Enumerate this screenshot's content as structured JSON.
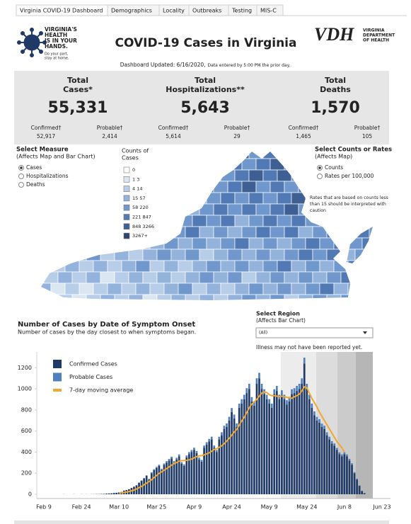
{
  "tabs": [
    "Virginia COVID-19 Dashboard",
    "Demographics",
    "Locality",
    "Outbreaks",
    "Testing",
    "MIS-C"
  ],
  "header": {
    "logo_lines": [
      "VIRGINIA'S",
      "HEALTH",
      "IS IN YOUR",
      "HANDS."
    ],
    "logo_tagline": [
      "Do your part,",
      "stay at home."
    ],
    "title": "COVID-19 Cases in Virginia",
    "vdh_mark": "VDH",
    "vdh_name": [
      "VIRGINIA",
      "DEPARTMENT",
      "OF HEALTH"
    ],
    "updated": "Dashboard Updated: 6/16/2020,",
    "updated_note": "Data entered by 5:00 PM the prior day."
  },
  "kpis": [
    {
      "title": [
        "Total",
        "Cases*"
      ],
      "value": "55,331",
      "parts": [
        {
          "label": "Confirmed†",
          "value": "52,917"
        },
        {
          "label": "Probable†",
          "value": "2,414"
        }
      ]
    },
    {
      "title": [
        "Total",
        "Hospitalizations**"
      ],
      "value": "5,643",
      "parts": [
        {
          "label": "Confirmed†",
          "value": "5,614"
        },
        {
          "label": "Probable†",
          "value": "29"
        }
      ]
    },
    {
      "title": [
        "Total",
        "Deaths"
      ],
      "value": "1,570",
      "parts": [
        {
          "label": "Confirmed†",
          "value": "1,465"
        },
        {
          "label": "Probable†",
          "value": "105"
        }
      ]
    }
  ],
  "map": {
    "measure_title": "Select Measure",
    "measure_sub": "(Affects Map and Bar Chart)",
    "measure_options": [
      "Cases",
      "Hospitalizations",
      "Deaths"
    ],
    "measure_selected": 0,
    "legend_title": [
      "Counts of",
      "Cases"
    ],
    "legend": [
      {
        "label": "0",
        "color": "#ffffff"
      },
      {
        "label": "1 3",
        "color": "#dbe6f3"
      },
      {
        "label": "4 14",
        "color": "#b8cde8"
      },
      {
        "label": "15 57",
        "color": "#94b3dc"
      },
      {
        "label": "58 220",
        "color": "#7098cc"
      },
      {
        "label": "221 847",
        "color": "#5179b3"
      },
      {
        "label": "848 3266",
        "color": "#3d5f92"
      },
      {
        "label": "3267+",
        "color": "#2b4470"
      }
    ],
    "counts_title": "Select Counts or Rates",
    "counts_sub": "(Affects Map)",
    "counts_options": [
      "Counts",
      "Rates per 100,000"
    ],
    "counts_selected": 0,
    "rates_note": [
      "Rates that are based on counts less",
      "than 15 should be interpreted with",
      "caution"
    ]
  },
  "region": {
    "title": "Select Region",
    "sub": "(Affects Bar Chart)",
    "value": "(All)",
    "note": "Illness may not have been reported yet."
  },
  "chart_data": {
    "type": "bar",
    "stacked": true,
    "title": "Number of Cases by Date of Symptom Onset",
    "subtitle": "Number of cases by the day closest to when symptoms began.",
    "categories": [
      "Feb 9",
      null,
      null,
      null,
      null,
      null,
      null,
      null,
      null,
      null,
      null,
      null,
      null,
      null,
      null,
      "Feb 24",
      null,
      null,
      null,
      null,
      null,
      null,
      null,
      null,
      null,
      null,
      null,
      null,
      null,
      null,
      "Mar 10",
      null,
      null,
      null,
      null,
      null,
      null,
      null,
      null,
      null,
      null,
      null,
      null,
      null,
      null,
      "Mar 25",
      null,
      null,
      null,
      null,
      null,
      null,
      null,
      null,
      null,
      null,
      null,
      null,
      null,
      null,
      "Apr 9",
      null,
      null,
      null,
      null,
      null,
      null,
      null,
      null,
      null,
      null,
      null,
      null,
      null,
      null,
      "Apr 24",
      null,
      null,
      null,
      null,
      null,
      null,
      null,
      null,
      null,
      null,
      null,
      null,
      null,
      null,
      "May 9",
      null,
      null,
      null,
      null,
      null,
      null,
      null,
      null,
      null,
      null,
      null,
      null,
      null,
      null,
      "May 24",
      null,
      null,
      null,
      null,
      null,
      null,
      null,
      null,
      null,
      null,
      null,
      null,
      null,
      null,
      "Jun 8",
      null,
      null,
      null,
      null,
      null,
      null,
      null,
      null,
      null,
      null,
      null,
      null,
      null,
      null,
      "Jun 23"
    ],
    "series": [
      {
        "name": "Confirmed Cases",
        "type": "bar",
        "color": "#1f3a66",
        "values": [
          0,
          0,
          0,
          0,
          0,
          0,
          0,
          0,
          1,
          0,
          0,
          0,
          1,
          0,
          0,
          1,
          0,
          1,
          0,
          1,
          1,
          2,
          2,
          3,
          4,
          6,
          8,
          9,
          12,
          14,
          18,
          22,
          35,
          40,
          48,
          60,
          72,
          85,
          110,
          130,
          150,
          175,
          140,
          200,
          230,
          250,
          270,
          230,
          280,
          300,
          320,
          340,
          300,
          330,
          360,
          290,
          270,
          350,
          380,
          400,
          420,
          390,
          330,
          310,
          440,
          470,
          500,
          520,
          440,
          400,
          520,
          560,
          620,
          640,
          700,
          780,
          720,
          640,
          820,
          860,
          900,
          960,
          1000,
          880,
          840,
          1050,
          1100,
          1000,
          950,
          900,
          860,
          820,
          950,
          980,
          900,
          940,
          900,
          850,
          880,
          950,
          960,
          980,
          1000,
          1050,
          1240,
          1000,
          900,
          820,
          750,
          700,
          680,
          640,
          620,
          560,
          520,
          480,
          460,
          420,
          380,
          360,
          380,
          360,
          320,
          280,
          200,
          140,
          80,
          30,
          10,
          null,
          null,
          null,
          null,
          null,
          null,
          null
        ]
      },
      {
        "name": "Probable Cases",
        "type": "bar",
        "color": "#4f7fbf",
        "values": [
          0,
          0,
          0,
          0,
          0,
          0,
          0,
          0,
          0,
          0,
          0,
          0,
          0,
          0,
          0,
          0,
          0,
          0,
          0,
          0,
          0,
          0,
          0,
          0,
          0,
          0,
          0,
          0,
          0,
          0,
          0,
          0,
          0,
          0,
          0,
          0,
          0,
          0,
          0,
          0,
          5,
          5,
          6,
          8,
          8,
          10,
          10,
          12,
          12,
          14,
          15,
          16,
          15,
          16,
          18,
          15,
          14,
          18,
          20,
          20,
          22,
          20,
          18,
          16,
          22,
          24,
          25,
          26,
          22,
          20,
          26,
          28,
          30,
          32,
          35,
          38,
          36,
          32,
          40,
          42,
          44,
          46,
          48,
          42,
          40,
          50,
          52,
          48,
          46,
          44,
          42,
          40,
          46,
          48,
          44,
          46,
          44,
          42,
          44,
          46,
          46,
          48,
          48,
          50,
          56,
          48,
          44,
          40,
          36,
          34,
          32,
          30,
          30,
          28,
          26,
          24,
          22,
          20,
          18,
          18,
          18,
          18,
          16,
          14,
          10,
          8,
          4,
          2,
          1,
          null,
          null,
          null,
          null,
          null,
          null,
          null
        ]
      },
      {
        "name": "7-day moving average",
        "type": "line",
        "color": "#f2a72e",
        "values": [
          null,
          null,
          null,
          null,
          null,
          null,
          null,
          null,
          null,
          null,
          null,
          null,
          null,
          null,
          null,
          null,
          null,
          null,
          null,
          null,
          null,
          null,
          null,
          null,
          null,
          null,
          null,
          null,
          null,
          null,
          10,
          13,
          17,
          21,
          26,
          32,
          40,
          50,
          62,
          75,
          90,
          106,
          120,
          138,
          158,
          178,
          198,
          213,
          228,
          243,
          260,
          276,
          290,
          300,
          314,
          320,
          320,
          322,
          326,
          334,
          345,
          357,
          364,
          366,
          373,
          383,
          393,
          408,
          425,
          432,
          445,
          460,
          480,
          505,
          530,
          560,
          590,
          615,
          655,
          695,
          730,
          775,
          820,
          855,
          875,
          900,
          930,
          960,
          970,
          965,
          945,
          935,
          935,
          930,
          925,
          930,
          925,
          920,
          915,
          910,
          925,
          935,
          950,
          980,
          1020,
          1010,
          960,
          910,
          870,
          830,
          780,
          740,
          700,
          660,
          620,
          580,
          540,
          500,
          470,
          440,
          400,
          null,
          null,
          null,
          null,
          null,
          null,
          null,
          null,
          null,
          null,
          null,
          null,
          null,
          null,
          null
        ]
      }
    ],
    "ylim": [
      0,
      1350
    ],
    "yticks": [
      0,
      200,
      400,
      600,
      800,
      1000,
      1200
    ],
    "grid": false
  }
}
